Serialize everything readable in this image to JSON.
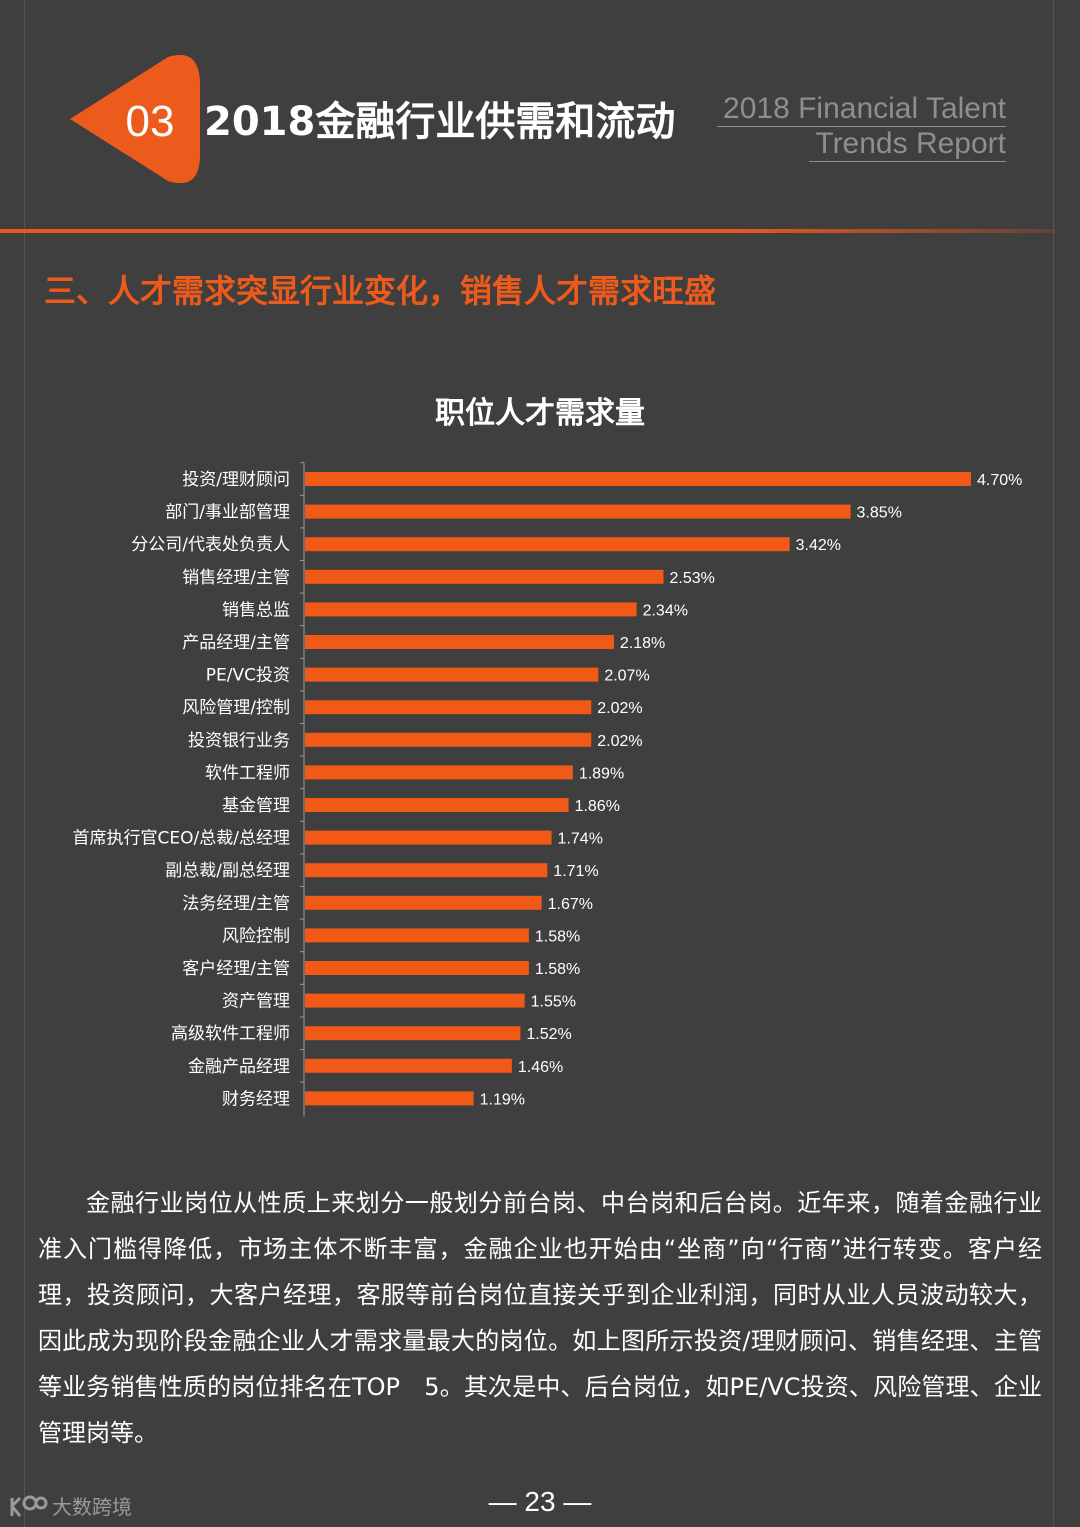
{
  "header": {
    "section_number": "03",
    "section_title": "2018金融行业供需和流动",
    "report_title_line1": "2018 Financial Talent",
    "report_title_line2": "Trends Report"
  },
  "subtitle": "三、人才需求突显行业变化，销售人才需求旺盛",
  "colors": {
    "accent": "#e8581a",
    "background": "#3f3f3f",
    "text": "#ffffff"
  },
  "chart_data": {
    "type": "bar",
    "orientation": "horizontal",
    "title": "职位人才需求量",
    "categories": [
      "投资/理财顾问",
      "部门/事业部管理",
      "分公司/代表处负责人",
      "销售经理/主管",
      "销售总监",
      "产品经理/主管",
      "PE/VC投资",
      "风险管理/控制",
      "投资银行业务",
      "软件工程师",
      "基金管理",
      "首席执行官CEO/总裁/总经理",
      "副总裁/副总经理",
      "法务经理/主管",
      "风险控制",
      "客户经理/主管",
      "资产管理",
      "高级软件工程师",
      "金融产品经理",
      "财务经理"
    ],
    "values": [
      4.7,
      3.85,
      3.42,
      2.53,
      2.34,
      2.18,
      2.07,
      2.02,
      2.02,
      1.89,
      1.86,
      1.74,
      1.71,
      1.67,
      1.58,
      1.58,
      1.55,
      1.52,
      1.46,
      1.19
    ],
    "value_labels": [
      "4.70%",
      "3.85%",
      "3.42%",
      "2.53%",
      "2.34%",
      "2.18%",
      "2.07%",
      "2.02%",
      "2.02%",
      "1.89%",
      "1.86%",
      "1.74%",
      "1.71%",
      "1.67%",
      "1.58%",
      "1.58%",
      "1.55%",
      "1.52%",
      "1.46%",
      "1.19%"
    ],
    "unit": "%",
    "xlim": [
      0,
      4.7
    ],
    "grid": false,
    "legend": "none",
    "bar_color": "#f05a16"
  },
  "body_text": "金融行业岗位从性质上来划分一般划分前台岗、中台岗和后台岗。近年来，随着金融行业准入门槛得降低，市场主体不断丰富，金融企业也开始由“坐商”向“行商”进行转变。客户经理，投资顾问，大客户经理，客服等前台岗位直接关乎到企业利润，同时从业人员波动较大，因此成为现阶段金融企业人才需求量最大的岗位。如上图所示投资/理财顾问、销售经理、主管等业务销售性质的岗位排名在TOP　5。其次是中、后台岗位，如PE/VC投资、风险管理、企业管理岗等。",
  "footer": {
    "page_number": "— 23 —",
    "watermark": "大数跨境"
  }
}
